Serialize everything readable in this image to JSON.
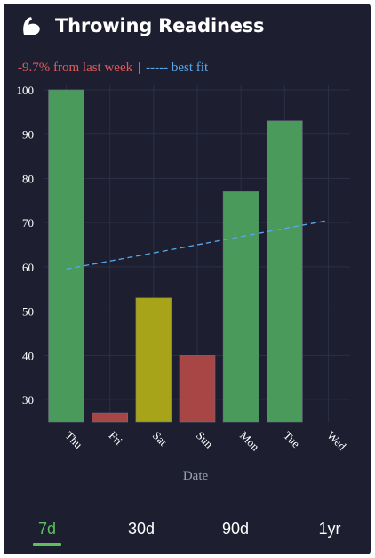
{
  "header": {
    "title": "Throwing Readiness",
    "icon": "flexed-biceps-icon"
  },
  "subtitle": {
    "change_text": "-9.7% from last week",
    "separator": "|",
    "fit_text": "----- best fit"
  },
  "colors": {
    "background": "#1d1f30",
    "good": "#4a9a5c",
    "caution": "#a8a419",
    "bad": "#a84646",
    "trend": "#5aa8e8",
    "active_tab": "#5cc05c"
  },
  "chart_data": {
    "type": "bar",
    "categories": [
      "Thu",
      "Fri",
      "Sat",
      "Sun",
      "Mon",
      "Tue",
      "Wed"
    ],
    "values": [
      100,
      27,
      53,
      40,
      77,
      93,
      null
    ],
    "statuses": [
      "good",
      "bad",
      "caution",
      "bad",
      "good",
      "good",
      "none"
    ],
    "ylim": [
      25,
      101
    ],
    "yticks": [
      30,
      40,
      50,
      60,
      70,
      80,
      90,
      100
    ],
    "xlabel": "Date",
    "ylabel": "",
    "grid": true,
    "trend": {
      "label": "best fit",
      "start": 59.5,
      "end": 70.5
    }
  },
  "tabs": [
    {
      "label": "7d",
      "active": true
    },
    {
      "label": "30d",
      "active": false
    },
    {
      "label": "90d",
      "active": false
    },
    {
      "label": "1yr",
      "active": false
    }
  ]
}
